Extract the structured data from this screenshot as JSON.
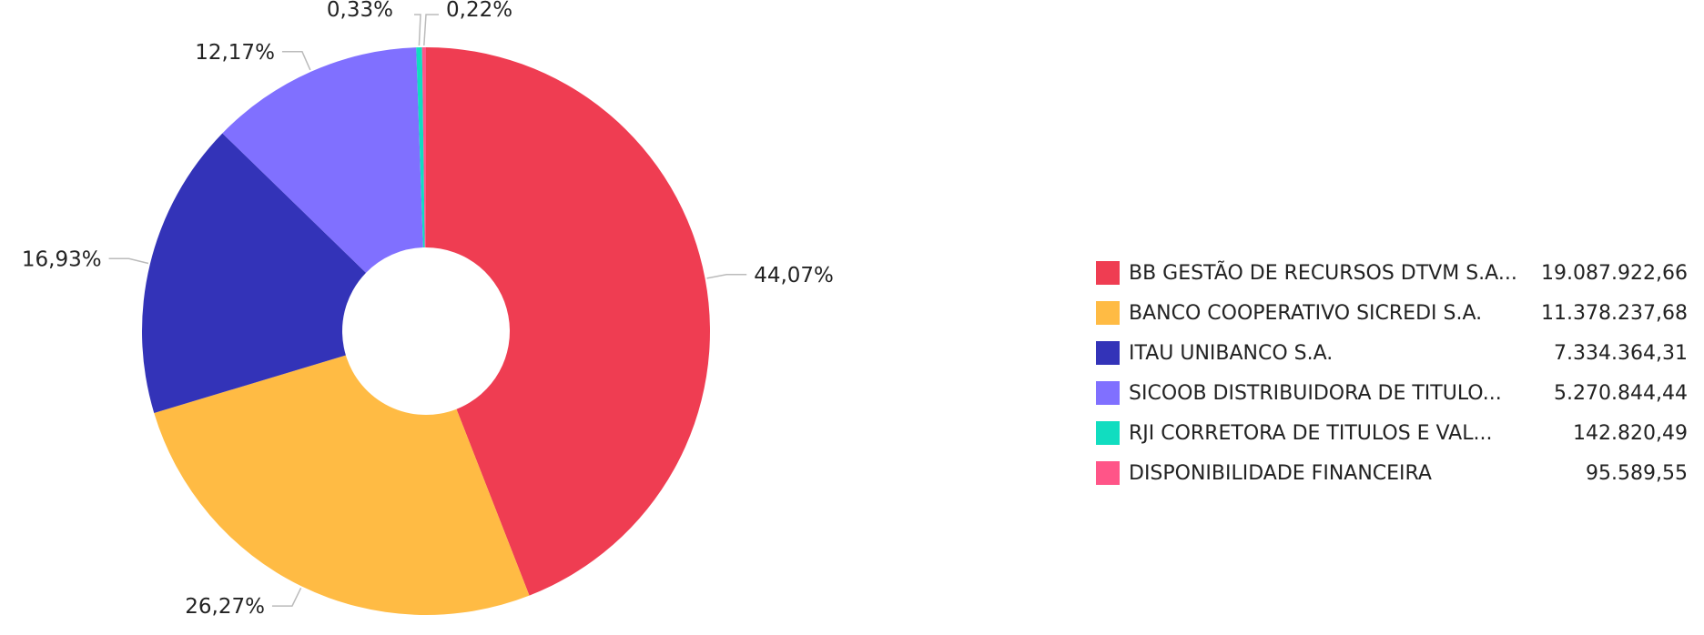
{
  "chart_data": {
    "type": "pie",
    "donut": true,
    "legend_position": "right",
    "slices": [
      {
        "label": "BB GESTÃO DE RECURSOS DTVM S.A...",
        "value": "19.087.922,66",
        "amount": 19087922.66,
        "percent_label": "44,07%",
        "color": "#ef3d52"
      },
      {
        "label": "BANCO COOPERATIVO SICREDI S.A.",
        "value": "11.378.237,68",
        "amount": 11378237.68,
        "percent_label": "26,27%",
        "color": "#ffbb44"
      },
      {
        "label": "ITAU UNIBANCO S.A.",
        "value": "7.334.364,31",
        "amount": 7334364.31,
        "percent_label": "16,93%",
        "color": "#3333b8"
      },
      {
        "label": "SICOOB DISTRIBUIDORA DE TITULO...",
        "value": "5.270.844,44",
        "amount": 5270844.44,
        "percent_label": "12,17%",
        "color": "#8070ff"
      },
      {
        "label": "RJI CORRETORA DE TITULOS E VAL...",
        "value": "142.820,49",
        "amount": 142820.49,
        "percent_label": "0,33%",
        "color": "#11ddc0"
      },
      {
        "label": "DISPONIBILIDADE FINANCEIRA",
        "value": "95.589,55",
        "amount": 95589.55,
        "percent_label": "0,22%",
        "color": "#ff5588"
      }
    ]
  }
}
